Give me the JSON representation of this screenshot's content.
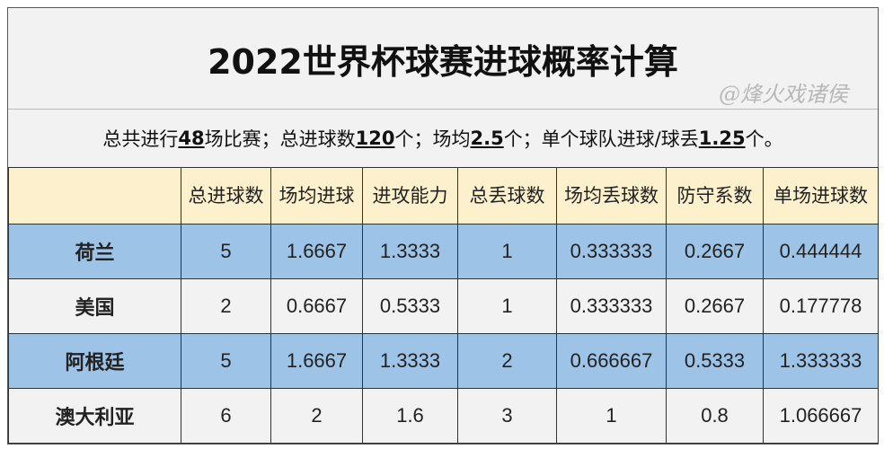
{
  "title": "2022世界杯球赛进球概率计算",
  "summary": {
    "p1": "总共进行",
    "v1": "48",
    "p2": "场比赛；总进球数",
    "v2": "120",
    "p3": "个；场均",
    "v3": "2.5",
    "p4": "个；单个球队进球/球丢",
    "v4": "1.25",
    "p5": "个。"
  },
  "headers": [
    "",
    "总进球数",
    "场均进球",
    "进攻能力",
    "总丢球数",
    "场均丢球数",
    "防守系数",
    "单场进球数"
  ],
  "rows": [
    {
      "team": "荷兰",
      "cells": [
        "5",
        "1.6667",
        "1.3333",
        "1",
        "0.333333",
        "0.2667",
        "0.444444"
      ]
    },
    {
      "team": "美国",
      "cells": [
        "2",
        "0.6667",
        "0.5333",
        "1",
        "0.333333",
        "0.2667",
        "0.177778"
      ]
    },
    {
      "team": "阿根廷",
      "cells": [
        "5",
        "1.6667",
        "1.3333",
        "2",
        "0.666667",
        "0.5333",
        "1.333333"
      ]
    },
    {
      "team": "澳大利亚",
      "cells": [
        "6",
        "2",
        "1.6",
        "3",
        "1",
        "0.8",
        "1.066667"
      ]
    }
  ],
  "watermark": "@烽火戏诸侯",
  "colors": {
    "header_bg": "#fdf0cc",
    "blue_row": "#9dc3e6",
    "grey_row": "#f2f2f2"
  }
}
